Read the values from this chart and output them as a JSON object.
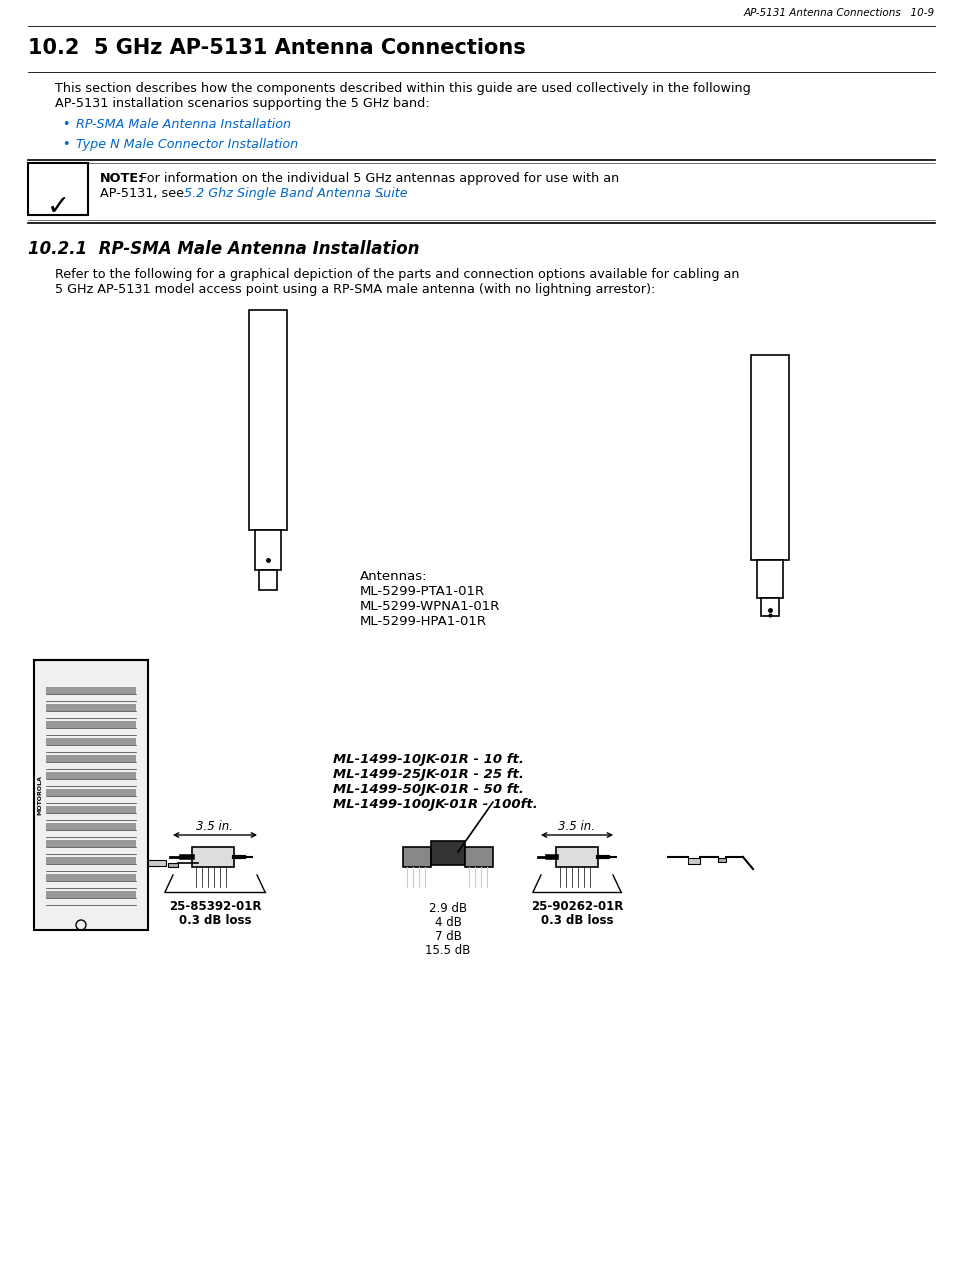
{
  "header_text": "AP-5131 Antenna Connections   10-9",
  "section_title": "10.2  5 GHz AP-5131 Antenna Connections",
  "body_text1": "This section describes how the components described within this guide are used collectively in the following",
  "body_text2": "AP-5131 installation scenarios supporting the 5 GHz band:",
  "bullet1": "RP-SMA Male Antenna Installation",
  "bullet2": "Type N Male Connector Installation",
  "note_bold": "NOTE:",
  "note_text1": " For information on the individual 5 GHz antennas approved for use with an",
  "note_text2": "AP-5131, see ",
  "note_link": "5.2 Ghz Single Band Antenna Suite",
  "note_end": ".",
  "subsection_title": "10.2.1  RP-SMA Male Antenna Installation",
  "body2_text1": "Refer to the following for a graphical depiction of the parts and connection options available for cabling an",
  "body2_text2": "5 GHz AP-5131 model access point using a RP-SMA male antenna (with no lightning arrestor):",
  "antennas_label_line1": "Antennas:",
  "antennas_label_line2": "ML-5299-PTA1-01R",
  "antennas_label_line3": "ML-5299-WPNA1-01R",
  "antennas_label_line4": "ML-5299-HPA1-01R",
  "cable_line1": "ML-1499-10JK-01R - 10 ft.",
  "cable_line2": "ML-1499-25JK-01R - 25 ft.",
  "cable_line3": "ML-1499-50JK-01R - 50 ft.",
  "cable_line4": "ML-1499-100JK-01R - 100ft.",
  "left_dim": "3.5 in.",
  "right_dim": "3.5 in.",
  "db_line1": "2.9 dB",
  "db_line2": "4 dB",
  "db_line3": "7 dB",
  "db_line4": "15.5 dB",
  "left_part_line1": "25-85392-01R",
  "left_part_line2": "0.3 dB loss",
  "right_part_line1": "25-90262-01R",
  "right_part_line2": "0.3 dB loss",
  "blue_color": "#0066CC",
  "black_color": "#000000",
  "bg_color": "#FFFFFF",
  "dark_gray": "#555555",
  "mid_gray": "#888888",
  "light_gray": "#CCCCCC",
  "lighter_gray": "#EEEEEE"
}
